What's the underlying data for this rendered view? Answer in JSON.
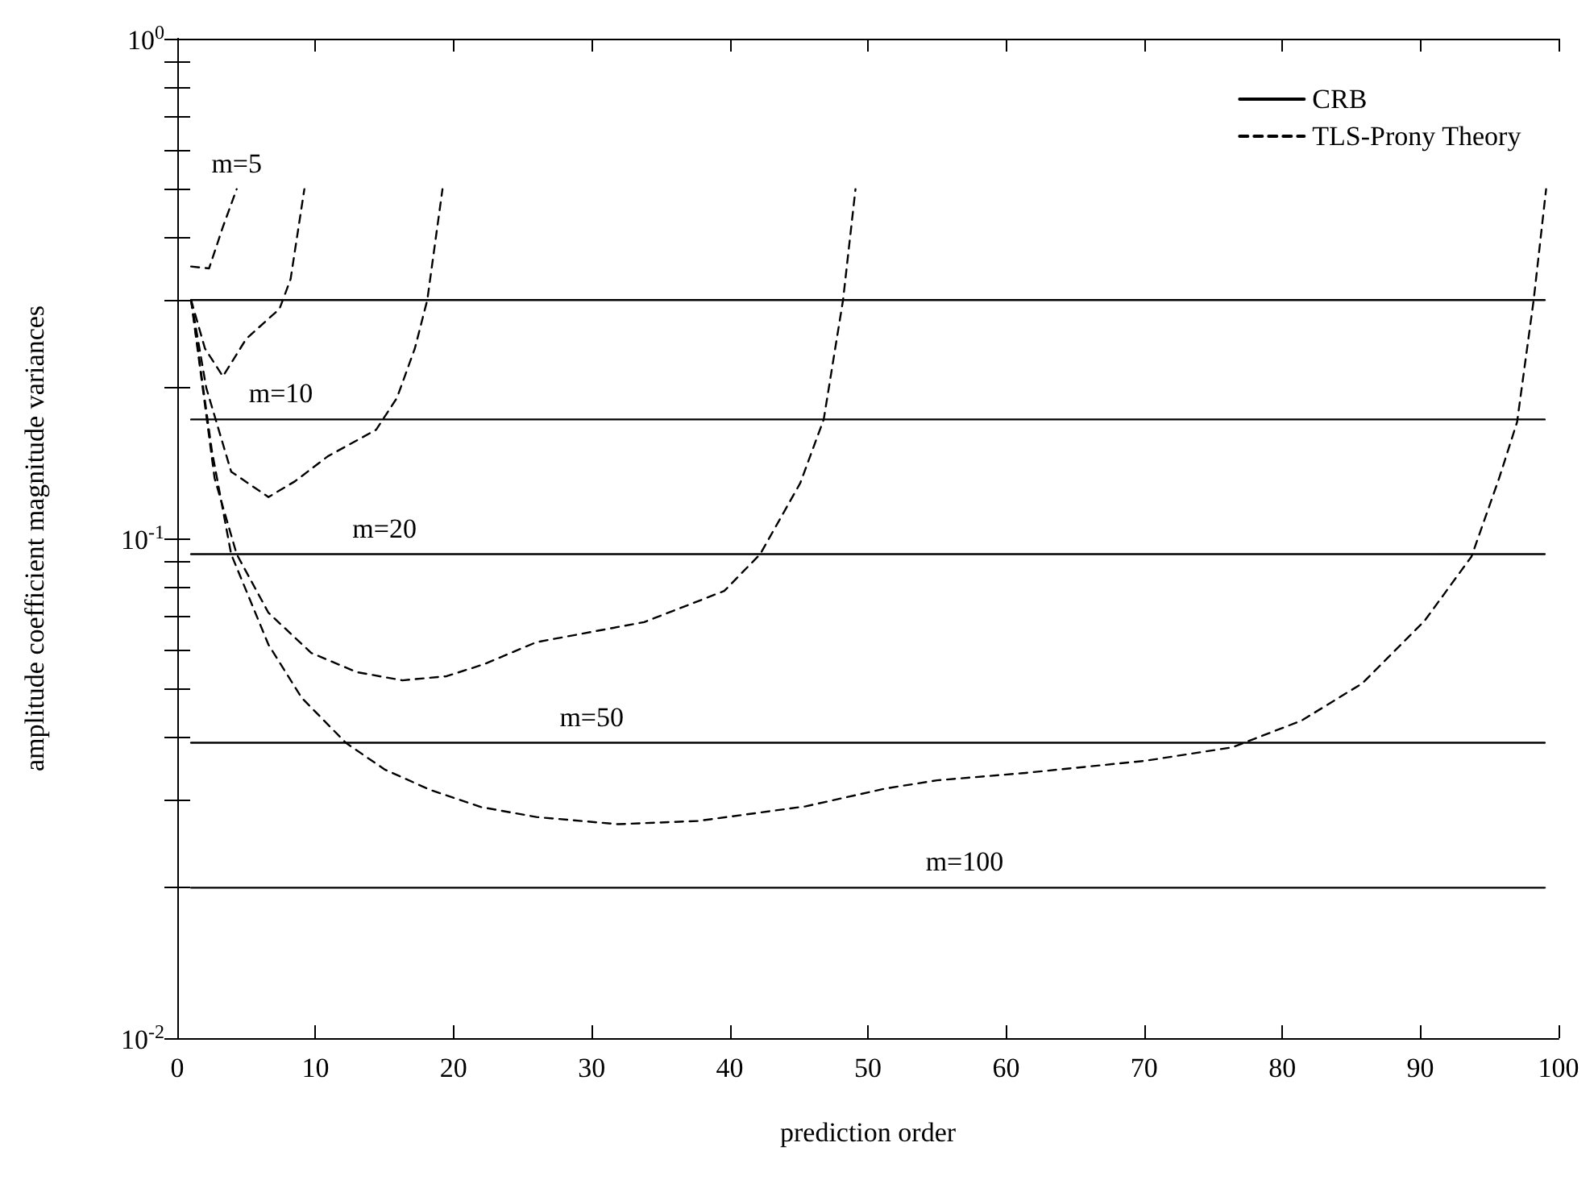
{
  "chart_data": {
    "type": "line",
    "xlabel": "prediction order",
    "ylabel": "amplitude coefficient magnitude variances",
    "xlim": [
      0,
      100
    ],
    "xticks": [
      0,
      10,
      20,
      30,
      40,
      50,
      60,
      70,
      80,
      90,
      100
    ],
    "ylim": [
      0.01,
      1
    ],
    "log": "y",
    "yticks": [
      {
        "value": 0.01,
        "label": "10$^{-2}$"
      },
      {
        "value": 0.02,
        "label": null
      },
      {
        "value": 0.03,
        "label": null
      },
      {
        "value": 0.04,
        "label": null
      },
      {
        "value": 0.05,
        "label": null
      },
      {
        "value": 0.06,
        "label": null
      },
      {
        "value": 0.07,
        "label": null
      },
      {
        "value": 0.08,
        "label": null
      },
      {
        "value": 0.09,
        "label": null
      },
      {
        "value": 0.1,
        "label": "10$^{-1}$"
      },
      {
        "value": 0.2,
        "label": null
      },
      {
        "value": 0.3,
        "label": null
      },
      {
        "value": 0.4,
        "label": null
      },
      {
        "value": 0.5,
        "label": null
      },
      {
        "value": 0.6,
        "label": null
      },
      {
        "value": 0.7,
        "label": null
      },
      {
        "value": 0.8,
        "label": null
      },
      {
        "value": 0.9,
        "label": null
      },
      {
        "value": 1,
        "label": "10$^{0}$"
      }
    ],
    "grid": false,
    "legend": "top right",
    "marker": "none",
    "series": [
      {
        "name": "CRB",
        "color": "#000000",
        "line_style": "solid",
        "x": [
          1,
          99
        ],
        "values": [
          0.3,
          0.3
        ]
      },
      {
        "color": "#000000",
        "line_style": "solid",
        "x": [
          1,
          99
        ],
        "values": [
          0.173,
          0.173
        ]
      },
      {
        "color": "#000000",
        "line_style": "solid",
        "x": [
          1,
          99
        ],
        "values": [
          0.093,
          0.093
        ]
      },
      {
        "color": "#000000",
        "line_style": "solid",
        "x": [
          1,
          99
        ],
        "values": [
          0.039,
          0.039
        ]
      },
      {
        "color": "#000000",
        "line_style": "solid",
        "x": [
          1,
          99
        ],
        "values": [
          0.02,
          0.02
        ]
      },
      {
        "name": "TLS-Prony Theory",
        "color": "#000000",
        "line_style": "dashed",
        "x": [
          1,
          2.3,
          3.3,
          4.3
        ],
        "values": [
          0.35,
          0.347,
          0.42,
          0.5
        ]
      },
      {
        "color": "#000000",
        "line_style": "dashed",
        "x": [
          1,
          2,
          3.3,
          5,
          7.4,
          8.2,
          9.2
        ],
        "values": [
          0.3,
          0.24,
          0.211,
          0.251,
          0.288,
          0.33,
          0.5
        ]
      },
      {
        "color": "#000000",
        "line_style": "dashed",
        "x": [
          1,
          2.1,
          3.9,
          6.6,
          8.5,
          10.9,
          14.4,
          15.9,
          17.2,
          18.1,
          19.2
        ],
        "values": [
          0.3,
          0.2,
          0.136,
          0.121,
          0.13,
          0.146,
          0.165,
          0.191,
          0.24,
          0.3,
          0.5
        ]
      },
      {
        "color": "#000000",
        "line_style": "dashed",
        "x": [
          1,
          2.7,
          4.3,
          6.6,
          9.7,
          13,
          16.3,
          19.5,
          22.2,
          26,
          33.8,
          39.6,
          42.2,
          45.1,
          46.8,
          48.2,
          49.1
        ],
        "values": [
          0.3,
          0.132,
          0.093,
          0.071,
          0.059,
          0.054,
          0.052,
          0.053,
          0.056,
          0.062,
          0.068,
          0.0785,
          0.093,
          0.129,
          0.173,
          0.3,
          0.5
        ]
      },
      {
        "color": "#000000",
        "line_style": "dashed",
        "x": [
          1,
          2.5,
          3.9,
          6.6,
          9,
          12.2,
          15,
          18.3,
          22,
          26,
          31.9,
          37.7,
          45.5,
          51.3,
          55,
          61.2,
          70.1,
          76.4,
          81.4,
          85.8,
          90.3,
          93.7,
          95.7,
          97,
          98.2,
          99.1
        ],
        "values": [
          0.3,
          0.15,
          0.093,
          0.0613,
          0.048,
          0.039,
          0.0345,
          0.0314,
          0.029,
          0.0277,
          0.0268,
          0.0272,
          0.0291,
          0.0316,
          0.0328,
          0.0339,
          0.0359,
          0.0382,
          0.0432,
          0.0513,
          0.0684,
          0.092,
          0.132,
          0.171,
          0.3,
          0.5
        ]
      }
    ],
    "annotations": [
      {
        "text": "m=5",
        "x": 4.3,
        "y": 0.5
      },
      {
        "text": "m=10",
        "x": 7.5,
        "y": 0.173
      },
      {
        "text": "m=20",
        "x": 15,
        "y": 0.093
      },
      {
        "text": "m=50",
        "x": 30,
        "y": 0.039
      },
      {
        "text": "m=100",
        "x": 57,
        "y": 0.02
      }
    ]
  }
}
